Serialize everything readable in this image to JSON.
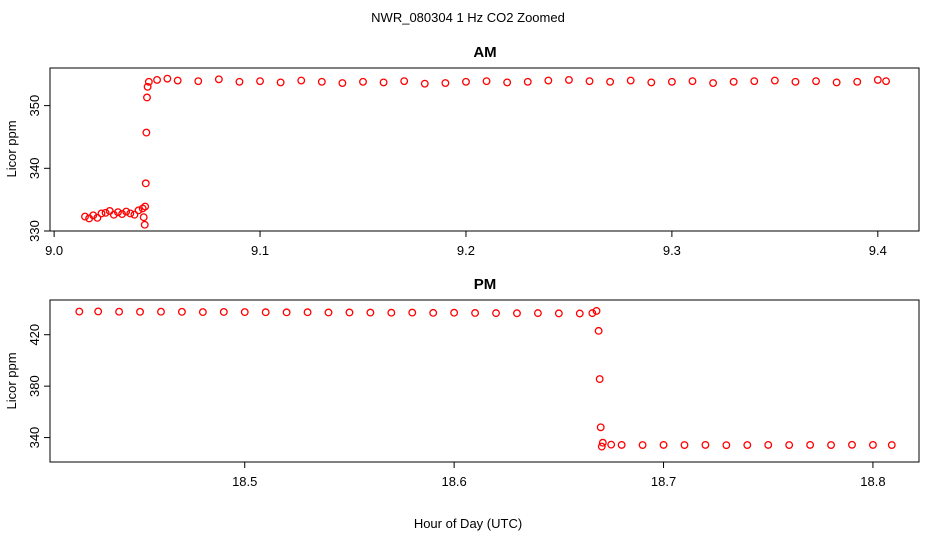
{
  "figure": {
    "title": "NWR_080304  1 Hz CO2 Zoomed",
    "xlabel": "Hour of Day (UTC)"
  },
  "colors": {
    "points": "#ff0000",
    "axes": "#000000",
    "background": "#ffffff"
  },
  "chart_data": [
    {
      "type": "scatter",
      "title": "AM",
      "ylabel": "Licor ppm",
      "xlim": [
        8.998,
        9.42
      ],
      "ylim": [
        330,
        356
      ],
      "x_ticks": [
        9.0,
        9.1,
        9.2,
        9.3,
        9.4
      ],
      "x_tick_labels": [
        "9.0",
        "9.1",
        "9.2",
        "9.3",
        "9.4"
      ],
      "y_ticks": [
        330,
        340,
        350
      ],
      "y_tick_labels": [
        "330",
        "340",
        "350"
      ],
      "grid": false,
      "series": [
        {
          "points": [
            [
              9.015,
              332.3
            ],
            [
              9.017,
              332.0
            ],
            [
              9.019,
              332.5
            ],
            [
              9.021,
              332.1
            ],
            [
              9.023,
              332.8
            ],
            [
              9.025,
              332.9
            ],
            [
              9.027,
              333.2
            ],
            [
              9.029,
              332.6
            ],
            [
              9.031,
              333.0
            ],
            [
              9.033,
              332.7
            ],
            [
              9.035,
              333.1
            ],
            [
              9.037,
              332.8
            ],
            [
              9.039,
              332.6
            ],
            [
              9.041,
              333.3
            ],
            [
              9.043,
              333.6
            ],
            [
              9.0435,
              332.2
            ],
            [
              9.044,
              331.0
            ],
            [
              9.0442,
              333.9
            ],
            [
              9.0445,
              337.6
            ],
            [
              9.0448,
              345.7
            ],
            [
              9.0451,
              351.3
            ],
            [
              9.0454,
              353.0
            ],
            [
              9.046,
              353.8
            ],
            [
              9.05,
              354.1
            ],
            [
              9.055,
              354.3
            ],
            [
              9.06,
              354.0
            ],
            [
              9.07,
              353.9
            ],
            [
              9.08,
              354.2
            ],
            [
              9.09,
              353.8
            ],
            [
              9.1,
              353.9
            ],
            [
              9.11,
              353.7
            ],
            [
              9.12,
              354.0
            ],
            [
              9.13,
              353.8
            ],
            [
              9.14,
              353.6
            ],
            [
              9.15,
              353.8
            ],
            [
              9.16,
              353.7
            ],
            [
              9.17,
              353.9
            ],
            [
              9.18,
              353.5
            ],
            [
              9.19,
              353.6
            ],
            [
              9.2,
              353.8
            ],
            [
              9.21,
              353.9
            ],
            [
              9.22,
              353.7
            ],
            [
              9.23,
              353.8
            ],
            [
              9.24,
              354.0
            ],
            [
              9.25,
              354.1
            ],
            [
              9.26,
              353.9
            ],
            [
              9.27,
              353.8
            ],
            [
              9.28,
              354.0
            ],
            [
              9.29,
              353.7
            ],
            [
              9.3,
              353.8
            ],
            [
              9.31,
              353.9
            ],
            [
              9.32,
              353.6
            ],
            [
              9.33,
              353.8
            ],
            [
              9.34,
              353.9
            ],
            [
              9.35,
              354.0
            ],
            [
              9.36,
              353.8
            ],
            [
              9.37,
              353.9
            ],
            [
              9.38,
              353.7
            ],
            [
              9.39,
              353.8
            ],
            [
              9.4,
              354.1
            ],
            [
              9.404,
              353.9
            ]
          ]
        }
      ]
    },
    {
      "type": "scatter",
      "title": "PM",
      "ylabel": "Licor ppm",
      "xlim": [
        18.407,
        18.822
      ],
      "ylim": [
        321,
        447
      ],
      "x_ticks": [
        18.5,
        18.6,
        18.7,
        18.8
      ],
      "x_tick_labels": [
        "18.5",
        "18.6",
        "18.7",
        "18.8"
      ],
      "y_ticks": [
        340,
        380,
        420
      ],
      "y_tick_labels": [
        "340",
        "380",
        "420"
      ],
      "grid": false,
      "series": [
        {
          "points": [
            [
              18.421,
              438.0
            ],
            [
              18.43,
              438.1
            ],
            [
              18.44,
              437.9
            ],
            [
              18.45,
              437.8
            ],
            [
              18.46,
              437.9
            ],
            [
              18.47,
              437.8
            ],
            [
              18.48,
              437.6
            ],
            [
              18.49,
              437.7
            ],
            [
              18.5,
              437.6
            ],
            [
              18.51,
              437.5
            ],
            [
              18.52,
              437.4
            ],
            [
              18.53,
              437.5
            ],
            [
              18.54,
              437.3
            ],
            [
              18.55,
              437.3
            ],
            [
              18.56,
              437.2
            ],
            [
              18.57,
              437.1
            ],
            [
              18.58,
              437.2
            ],
            [
              18.59,
              437.0
            ],
            [
              18.6,
              437.1
            ],
            [
              18.61,
              436.9
            ],
            [
              18.62,
              436.8
            ],
            [
              18.63,
              436.7
            ],
            [
              18.64,
              436.8
            ],
            [
              18.65,
              436.6
            ],
            [
              18.66,
              436.5
            ],
            [
              18.666,
              436.8
            ],
            [
              18.668,
              438.5
            ],
            [
              18.669,
              423.0
            ],
            [
              18.6695,
              385.5
            ],
            [
              18.67,
              348.0
            ],
            [
              18.6705,
              333.0
            ],
            [
              18.671,
              336.0
            ],
            [
              18.675,
              334.5
            ],
            [
              18.68,
              334.3
            ],
            [
              18.69,
              334.2
            ],
            [
              18.7,
              334.3
            ],
            [
              18.71,
              334.2
            ],
            [
              18.72,
              334.3
            ],
            [
              18.73,
              334.1
            ],
            [
              18.74,
              334.2
            ],
            [
              18.75,
              334.3
            ],
            [
              18.76,
              334.2
            ],
            [
              18.77,
              334.3
            ],
            [
              18.78,
              334.2
            ],
            [
              18.79,
              334.4
            ],
            [
              18.8,
              334.3
            ],
            [
              18.809,
              334.2
            ]
          ]
        }
      ]
    }
  ]
}
